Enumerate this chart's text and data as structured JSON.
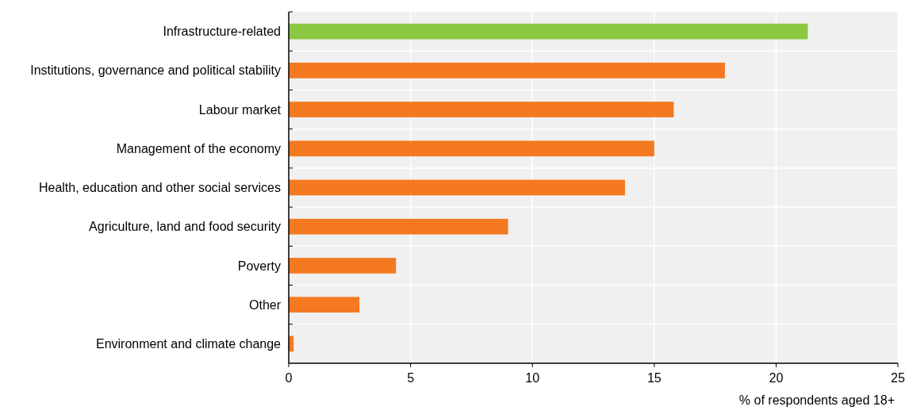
{
  "chart_data": {
    "type": "bar",
    "orientation": "horizontal",
    "xlabel": "% of respondents aged 18+",
    "categories": [
      "Infrastructure-related",
      "Institutions, governance and political stability",
      "Labour market",
      "Management of the economy",
      "Health, education and other social services",
      "Agriculture, land and food security",
      "Poverty",
      "Other",
      "Environment and climate change"
    ],
    "values": [
      21.3,
      17.9,
      15.8,
      15.0,
      13.8,
      9.0,
      4.4,
      2.9,
      0.2
    ],
    "colors": [
      "#8cc841",
      "#f47920",
      "#f47920",
      "#f47920",
      "#f47920",
      "#f47920",
      "#f47920",
      "#f47920",
      "#f47920"
    ],
    "xlim": [
      0,
      25
    ],
    "xticks": [
      0,
      5,
      10,
      15,
      20,
      25
    ],
    "grid": true
  }
}
